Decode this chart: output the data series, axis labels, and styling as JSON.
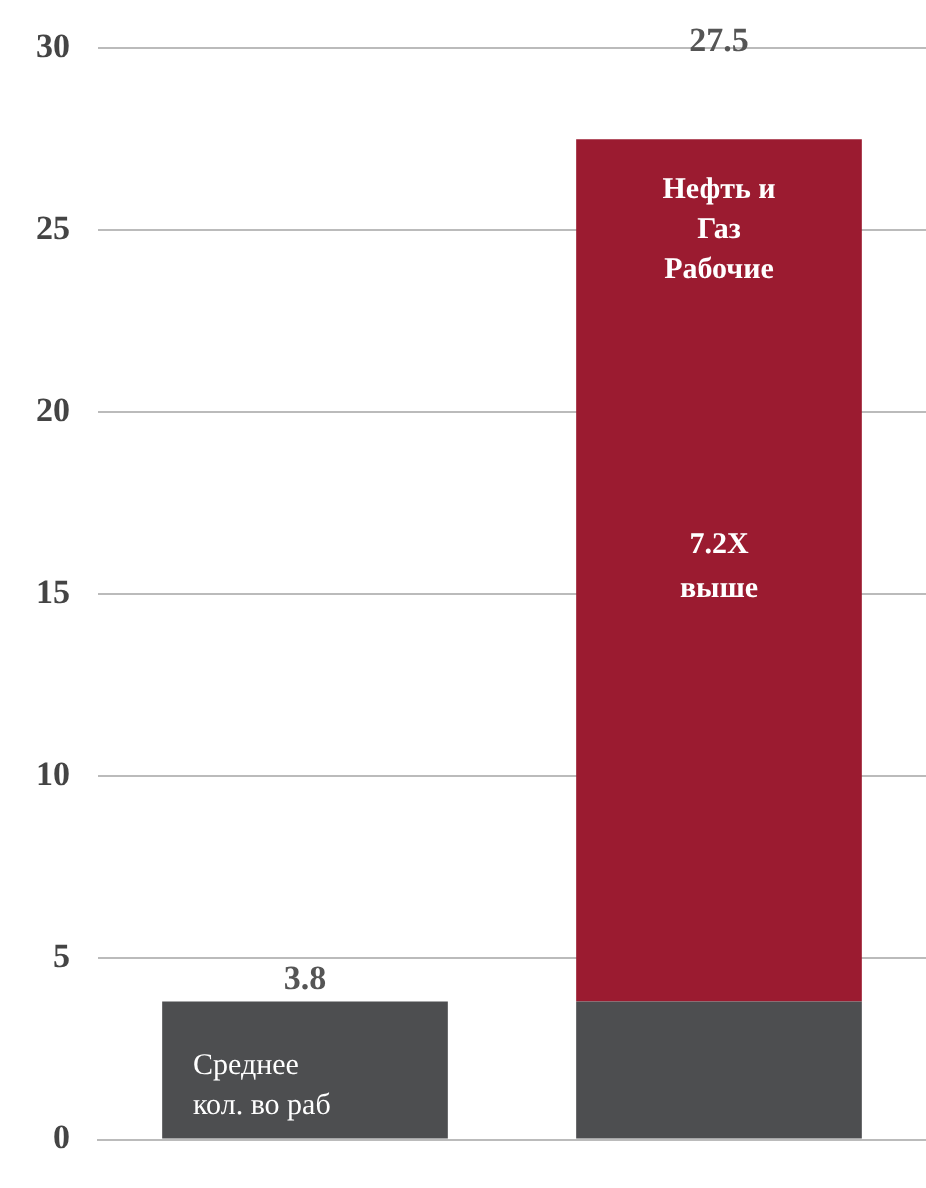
{
  "chart_data": {
    "type": "bar",
    "stacked": true,
    "categories": [
      null,
      null
    ],
    "series": [
      {
        "color": "#4d4e50",
        "values": [
          3.8,
          3.8
        ]
      },
      {
        "color": "#9b1b30",
        "values": [
          null,
          23.7
        ]
      }
    ],
    "totals": [
      "3.8",
      "27.5"
    ],
    "annotations": [
      "Нефть и Газ Рабочие",
      "7.2X выше",
      "Среднее кол. во раб"
    ],
    "ylim": [
      0,
      30
    ],
    "yticks": [
      0,
      5,
      10,
      15,
      20,
      25,
      30
    ],
    "grid": "y",
    "legend": false
  }
}
